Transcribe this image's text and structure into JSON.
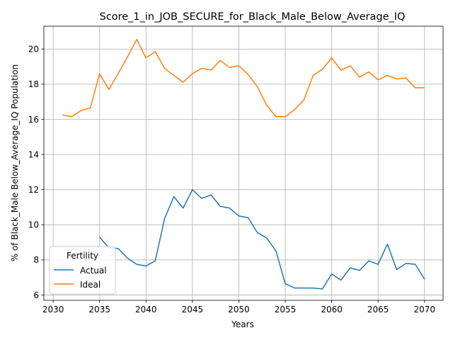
{
  "chart_data": {
    "type": "line",
    "title": "Score_1_in_JOB_SECURE_for_Black_Male_Below_Average_IQ",
    "xlabel": "Years",
    "ylabel": "% of Black_Male Below_Average_IQ Population",
    "xlim": [
      2029,
      2072
    ],
    "ylim": [
      5.7,
      21.3
    ],
    "xticks": [
      2030,
      2035,
      2040,
      2045,
      2050,
      2055,
      2060,
      2065,
      2070
    ],
    "yticks": [
      6,
      8,
      10,
      12,
      14,
      16,
      18,
      20
    ],
    "grid": true,
    "legend": {
      "title": "Fertility",
      "placement": "lower-left"
    },
    "series": [
      {
        "name": "Actual",
        "color": "#1f77b4",
        "x": [
          2035,
          2036,
          2037,
          2038,
          2039,
          2040,
          2041,
          2042,
          2043,
          2044,
          2045,
          2046,
          2047,
          2048,
          2049,
          2050,
          2051,
          2052,
          2053,
          2054,
          2055,
          2056,
          2057,
          2058,
          2059,
          2060,
          2061,
          2062,
          2063,
          2064,
          2065,
          2066,
          2067,
          2068,
          2069,
          2070
        ],
        "values": [
          9.3,
          8.7,
          8.65,
          8.1,
          7.75,
          7.65,
          7.95,
          10.35,
          11.6,
          10.95,
          12.0,
          11.5,
          11.7,
          11.05,
          10.95,
          10.5,
          10.4,
          9.55,
          9.25,
          8.5,
          6.65,
          6.4,
          6.4,
          6.4,
          6.35,
          7.2,
          6.85,
          7.55,
          7.4,
          7.95,
          7.75,
          8.9,
          7.45,
          7.8,
          7.75,
          6.9
        ]
      },
      {
        "name": "Ideal",
        "color": "#ff7f0e",
        "x": [
          2031,
          2032,
          2033,
          2034,
          2035,
          2036,
          2037,
          2038,
          2039,
          2040,
          2041,
          2042,
          2043,
          2044,
          2045,
          2046,
          2047,
          2048,
          2049,
          2050,
          2051,
          2052,
          2053,
          2054,
          2055,
          2056,
          2057,
          2058,
          2059,
          2060,
          2061,
          2062,
          2063,
          2064,
          2065,
          2066,
          2067,
          2068,
          2069,
          2070
        ],
        "values": [
          16.25,
          16.15,
          16.5,
          16.65,
          18.6,
          17.7,
          18.6,
          19.55,
          20.55,
          19.5,
          19.85,
          18.9,
          18.5,
          18.1,
          18.6,
          18.9,
          18.8,
          19.35,
          18.95,
          19.05,
          18.55,
          17.85,
          16.8,
          16.15,
          16.15,
          16.55,
          17.1,
          18.5,
          18.85,
          19.5,
          18.8,
          19.05,
          18.4,
          18.7,
          18.25,
          18.5,
          18.3,
          18.35,
          17.8,
          17.8
        ]
      }
    ]
  }
}
